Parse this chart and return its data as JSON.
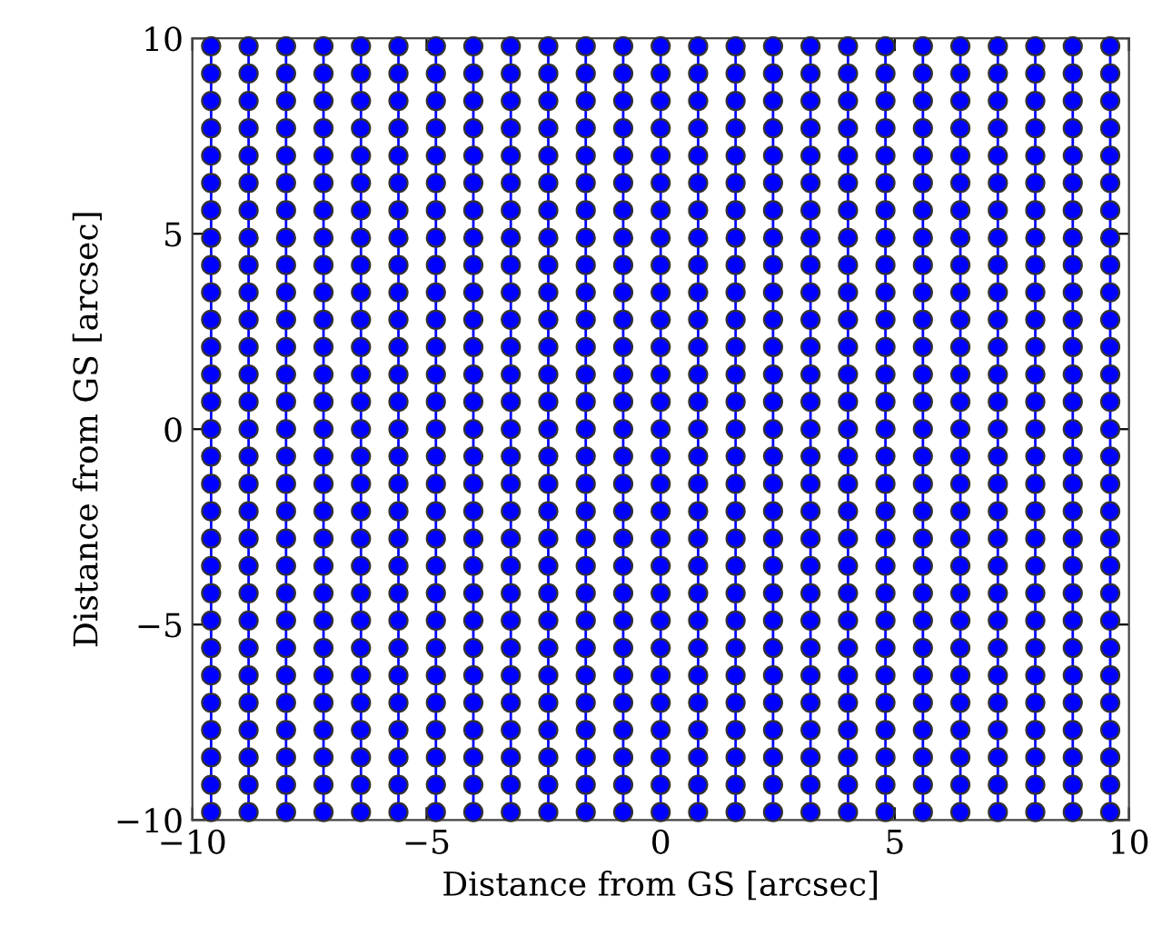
{
  "chart_data": {
    "type": "line",
    "xlabel": "Distance from GS [arcsec]",
    "ylabel": "Distance from GS [arcsec]",
    "xlim": [
      -10,
      10
    ],
    "ylim": [
      -10,
      10
    ],
    "xticks": [
      {
        "value": -10,
        "label": "−10"
      },
      {
        "value": -5,
        "label": "−5"
      },
      0,
      5,
      10
    ],
    "yticks": [
      {
        "value": -10,
        "label": "−10"
      },
      {
        "value": -5,
        "label": "−5"
      },
      0,
      5,
      10
    ],
    "marker": "circle",
    "line_style": "solid",
    "grid": false,
    "series": [
      {
        "color": "#0000ff",
        "x": [
          -9.6,
          -9.6,
          -9.6,
          -9.6,
          -9.6,
          -9.6,
          -9.6,
          -9.6,
          -9.6,
          -9.6,
          -9.6,
          -9.6,
          -9.6,
          -9.6,
          -9.6,
          -9.6,
          -9.6,
          -9.6,
          -9.6,
          -9.6,
          -9.6,
          -9.6,
          -9.6,
          -9.6,
          -9.6,
          -9.6,
          -9.6,
          -9.6,
          -9.6
        ],
        "values": [
          -9.8,
          -9.1,
          -8.4,
          -7.7,
          -7,
          -6.3,
          -5.6,
          -4.9,
          -4.2,
          -3.5,
          -2.8,
          -2.1,
          -1.4,
          -0.7,
          0,
          0.7,
          1.4,
          2.1,
          2.8,
          3.5,
          4.2,
          4.9,
          5.6,
          6.3,
          7,
          7.7,
          8.4,
          9.1,
          9.8
        ]
      },
      {
        "color": "#0000ff",
        "x": [
          -8.8,
          -8.8,
          -8.8,
          -8.8,
          -8.8,
          -8.8,
          -8.8,
          -8.8,
          -8.8,
          -8.8,
          -8.8,
          -8.8,
          -8.8,
          -8.8,
          -8.8,
          -8.8,
          -8.8,
          -8.8,
          -8.8,
          -8.8,
          -8.8,
          -8.8,
          -8.8,
          -8.8,
          -8.8,
          -8.8,
          -8.8,
          -8.8,
          -8.8
        ],
        "values": [
          -9.8,
          -9.1,
          -8.4,
          -7.7,
          -7,
          -6.3,
          -5.6,
          -4.9,
          -4.2,
          -3.5,
          -2.8,
          -2.1,
          -1.4,
          -0.7,
          0,
          0.7,
          1.4,
          2.1,
          2.8,
          3.5,
          4.2,
          4.9,
          5.6,
          6.3,
          7,
          7.7,
          8.4,
          9.1,
          9.8
        ]
      },
      {
        "color": "#0000ff",
        "x": [
          -8,
          -8,
          -8,
          -8,
          -8,
          -8,
          -8,
          -8,
          -8,
          -8,
          -8,
          -8,
          -8,
          -8,
          -8,
          -8,
          -8,
          -8,
          -8,
          -8,
          -8,
          -8,
          -8,
          -8,
          -8,
          -8,
          -8,
          -8,
          -8
        ],
        "values": [
          -9.8,
          -9.1,
          -8.4,
          -7.7,
          -7,
          -6.3,
          -5.6,
          -4.9,
          -4.2,
          -3.5,
          -2.8,
          -2.1,
          -1.4,
          -0.7,
          0,
          0.7,
          1.4,
          2.1,
          2.8,
          3.5,
          4.2,
          4.9,
          5.6,
          6.3,
          7,
          7.7,
          8.4,
          9.1,
          9.8
        ]
      },
      {
        "color": "#0000ff",
        "x": [
          -7.2,
          -7.2,
          -7.2,
          -7.2,
          -7.2,
          -7.2,
          -7.2,
          -7.2,
          -7.2,
          -7.2,
          -7.2,
          -7.2,
          -7.2,
          -7.2,
          -7.2,
          -7.2,
          -7.2,
          -7.2,
          -7.2,
          -7.2,
          -7.2,
          -7.2,
          -7.2,
          -7.2,
          -7.2,
          -7.2,
          -7.2,
          -7.2,
          -7.2
        ],
        "values": [
          -9.8,
          -9.1,
          -8.4,
          -7.7,
          -7,
          -6.3,
          -5.6,
          -4.9,
          -4.2,
          -3.5,
          -2.8,
          -2.1,
          -1.4,
          -0.7,
          0,
          0.7,
          1.4,
          2.1,
          2.8,
          3.5,
          4.2,
          4.9,
          5.6,
          6.3,
          7,
          7.7,
          8.4,
          9.1,
          9.8
        ]
      },
      {
        "color": "#0000ff",
        "x": [
          -6.4,
          -6.4,
          -6.4,
          -6.4,
          -6.4,
          -6.4,
          -6.4,
          -6.4,
          -6.4,
          -6.4,
          -6.4,
          -6.4,
          -6.4,
          -6.4,
          -6.4,
          -6.4,
          -6.4,
          -6.4,
          -6.4,
          -6.4,
          -6.4,
          -6.4,
          -6.4,
          -6.4,
          -6.4,
          -6.4,
          -6.4,
          -6.4,
          -6.4
        ],
        "values": [
          -9.8,
          -9.1,
          -8.4,
          -7.7,
          -7,
          -6.3,
          -5.6,
          -4.9,
          -4.2,
          -3.5,
          -2.8,
          -2.1,
          -1.4,
          -0.7,
          0,
          0.7,
          1.4,
          2.1,
          2.8,
          3.5,
          4.2,
          4.9,
          5.6,
          6.3,
          7,
          7.7,
          8.4,
          9.1,
          9.8
        ]
      },
      {
        "color": "#0000ff",
        "x": [
          -5.6,
          -5.6,
          -5.6,
          -5.6,
          -5.6,
          -5.6,
          -5.6,
          -5.6,
          -5.6,
          -5.6,
          -5.6,
          -5.6,
          -5.6,
          -5.6,
          -5.6,
          -5.6,
          -5.6,
          -5.6,
          -5.6,
          -5.6,
          -5.6,
          -5.6,
          -5.6,
          -5.6,
          -5.6,
          -5.6,
          -5.6,
          -5.6,
          -5.6
        ],
        "values": [
          -9.8,
          -9.1,
          -8.4,
          -7.7,
          -7,
          -6.3,
          -5.6,
          -4.9,
          -4.2,
          -3.5,
          -2.8,
          -2.1,
          -1.4,
          -0.7,
          0,
          0.7,
          1.4,
          2.1,
          2.8,
          3.5,
          4.2,
          4.9,
          5.6,
          6.3,
          7,
          7.7,
          8.4,
          9.1,
          9.8
        ]
      },
      {
        "color": "#0000ff",
        "x": [
          -4.8,
          -4.8,
          -4.8,
          -4.8,
          -4.8,
          -4.8,
          -4.8,
          -4.8,
          -4.8,
          -4.8,
          -4.8,
          -4.8,
          -4.8,
          -4.8,
          -4.8,
          -4.8,
          -4.8,
          -4.8,
          -4.8,
          -4.8,
          -4.8,
          -4.8,
          -4.8,
          -4.8,
          -4.8,
          -4.8,
          -4.8,
          -4.8,
          -4.8
        ],
        "values": [
          -9.8,
          -9.1,
          -8.4,
          -7.7,
          -7,
          -6.3,
          -5.6,
          -4.9,
          -4.2,
          -3.5,
          -2.8,
          -2.1,
          -1.4,
          -0.7,
          0,
          0.7,
          1.4,
          2.1,
          2.8,
          3.5,
          4.2,
          4.9,
          5.6,
          6.3,
          7,
          7.7,
          8.4,
          9.1,
          9.8
        ]
      },
      {
        "color": "#0000ff",
        "x": [
          -4,
          -4,
          -4,
          -4,
          -4,
          -4,
          -4,
          -4,
          -4,
          -4,
          -4,
          -4,
          -4,
          -4,
          -4,
          -4,
          -4,
          -4,
          -4,
          -4,
          -4,
          -4,
          -4,
          -4,
          -4,
          -4,
          -4,
          -4,
          -4
        ],
        "values": [
          -9.8,
          -9.1,
          -8.4,
          -7.7,
          -7,
          -6.3,
          -5.6,
          -4.9,
          -4.2,
          -3.5,
          -2.8,
          -2.1,
          -1.4,
          -0.7,
          0,
          0.7,
          1.4,
          2.1,
          2.8,
          3.5,
          4.2,
          4.9,
          5.6,
          6.3,
          7,
          7.7,
          8.4,
          9.1,
          9.8
        ]
      },
      {
        "color": "#0000ff",
        "x": [
          -3.2,
          -3.2,
          -3.2,
          -3.2,
          -3.2,
          -3.2,
          -3.2,
          -3.2,
          -3.2,
          -3.2,
          -3.2,
          -3.2,
          -3.2,
          -3.2,
          -3.2,
          -3.2,
          -3.2,
          -3.2,
          -3.2,
          -3.2,
          -3.2,
          -3.2,
          -3.2,
          -3.2,
          -3.2,
          -3.2,
          -3.2,
          -3.2,
          -3.2
        ],
        "values": [
          -9.8,
          -9.1,
          -8.4,
          -7.7,
          -7,
          -6.3,
          -5.6,
          -4.9,
          -4.2,
          -3.5,
          -2.8,
          -2.1,
          -1.4,
          -0.7,
          0,
          0.7,
          1.4,
          2.1,
          2.8,
          3.5,
          4.2,
          4.9,
          5.6,
          6.3,
          7,
          7.7,
          8.4,
          9.1,
          9.8
        ]
      },
      {
        "color": "#0000ff",
        "x": [
          -2.4,
          -2.4,
          -2.4,
          -2.4,
          -2.4,
          -2.4,
          -2.4,
          -2.4,
          -2.4,
          -2.4,
          -2.4,
          -2.4,
          -2.4,
          -2.4,
          -2.4,
          -2.4,
          -2.4,
          -2.4,
          -2.4,
          -2.4,
          -2.4,
          -2.4,
          -2.4,
          -2.4,
          -2.4,
          -2.4,
          -2.4,
          -2.4,
          -2.4
        ],
        "values": [
          -9.8,
          -9.1,
          -8.4,
          -7.7,
          -7,
          -6.3,
          -5.6,
          -4.9,
          -4.2,
          -3.5,
          -2.8,
          -2.1,
          -1.4,
          -0.7,
          0,
          0.7,
          1.4,
          2.1,
          2.8,
          3.5,
          4.2,
          4.9,
          5.6,
          6.3,
          7,
          7.7,
          8.4,
          9.1,
          9.8
        ]
      },
      {
        "color": "#0000ff",
        "x": [
          -1.6,
          -1.6,
          -1.6,
          -1.6,
          -1.6,
          -1.6,
          -1.6,
          -1.6,
          -1.6,
          -1.6,
          -1.6,
          -1.6,
          -1.6,
          -1.6,
          -1.6,
          -1.6,
          -1.6,
          -1.6,
          -1.6,
          -1.6,
          -1.6,
          -1.6,
          -1.6,
          -1.6,
          -1.6,
          -1.6,
          -1.6,
          -1.6,
          -1.6
        ],
        "values": [
          -9.8,
          -9.1,
          -8.4,
          -7.7,
          -7,
          -6.3,
          -5.6,
          -4.9,
          -4.2,
          -3.5,
          -2.8,
          -2.1,
          -1.4,
          -0.7,
          0,
          0.7,
          1.4,
          2.1,
          2.8,
          3.5,
          4.2,
          4.9,
          5.6,
          6.3,
          7,
          7.7,
          8.4,
          9.1,
          9.8
        ]
      },
      {
        "color": "#0000ff",
        "x": [
          -0.8,
          -0.8,
          -0.8,
          -0.8,
          -0.8,
          -0.8,
          -0.8,
          -0.8,
          -0.8,
          -0.8,
          -0.8,
          -0.8,
          -0.8,
          -0.8,
          -0.8,
          -0.8,
          -0.8,
          -0.8,
          -0.8,
          -0.8,
          -0.8,
          -0.8,
          -0.8,
          -0.8,
          -0.8,
          -0.8,
          -0.8,
          -0.8,
          -0.8
        ],
        "values": [
          -9.8,
          -9.1,
          -8.4,
          -7.7,
          -7,
          -6.3,
          -5.6,
          -4.9,
          -4.2,
          -3.5,
          -2.8,
          -2.1,
          -1.4,
          -0.7,
          0,
          0.7,
          1.4,
          2.1,
          2.8,
          3.5,
          4.2,
          4.9,
          5.6,
          6.3,
          7,
          7.7,
          8.4,
          9.1,
          9.8
        ]
      },
      {
        "color": "#0000ff",
        "x": [
          0,
          0,
          0,
          0,
          0,
          0,
          0,
          0,
          0,
          0,
          0,
          0,
          0,
          0,
          0,
          0,
          0,
          0,
          0,
          0,
          0,
          0,
          0,
          0,
          0,
          0,
          0,
          0,
          0
        ],
        "values": [
          -9.8,
          -9.1,
          -8.4,
          -7.7,
          -7,
          -6.3,
          -5.6,
          -4.9,
          -4.2,
          -3.5,
          -2.8,
          -2.1,
          -1.4,
          -0.7,
          0,
          0.7,
          1.4,
          2.1,
          2.8,
          3.5,
          4.2,
          4.9,
          5.6,
          6.3,
          7,
          7.7,
          8.4,
          9.1,
          9.8
        ]
      },
      {
        "color": "#0000ff",
        "x": [
          0.8,
          0.8,
          0.8,
          0.8,
          0.8,
          0.8,
          0.8,
          0.8,
          0.8,
          0.8,
          0.8,
          0.8,
          0.8,
          0.8,
          0.8,
          0.8,
          0.8,
          0.8,
          0.8,
          0.8,
          0.8,
          0.8,
          0.8,
          0.8,
          0.8,
          0.8,
          0.8,
          0.8,
          0.8
        ],
        "values": [
          -9.8,
          -9.1,
          -8.4,
          -7.7,
          -7,
          -6.3,
          -5.6,
          -4.9,
          -4.2,
          -3.5,
          -2.8,
          -2.1,
          -1.4,
          -0.7,
          0,
          0.7,
          1.4,
          2.1,
          2.8,
          3.5,
          4.2,
          4.9,
          5.6,
          6.3,
          7,
          7.7,
          8.4,
          9.1,
          9.8
        ]
      },
      {
        "color": "#0000ff",
        "x": [
          1.6,
          1.6,
          1.6,
          1.6,
          1.6,
          1.6,
          1.6,
          1.6,
          1.6,
          1.6,
          1.6,
          1.6,
          1.6,
          1.6,
          1.6,
          1.6,
          1.6,
          1.6,
          1.6,
          1.6,
          1.6,
          1.6,
          1.6,
          1.6,
          1.6,
          1.6,
          1.6,
          1.6,
          1.6
        ],
        "values": [
          -9.8,
          -9.1,
          -8.4,
          -7.7,
          -7,
          -6.3,
          -5.6,
          -4.9,
          -4.2,
          -3.5,
          -2.8,
          -2.1,
          -1.4,
          -0.7,
          0,
          0.7,
          1.4,
          2.1,
          2.8,
          3.5,
          4.2,
          4.9,
          5.6,
          6.3,
          7,
          7.7,
          8.4,
          9.1,
          9.8
        ]
      },
      {
        "color": "#0000ff",
        "x": [
          2.4,
          2.4,
          2.4,
          2.4,
          2.4,
          2.4,
          2.4,
          2.4,
          2.4,
          2.4,
          2.4,
          2.4,
          2.4,
          2.4,
          2.4,
          2.4,
          2.4,
          2.4,
          2.4,
          2.4,
          2.4,
          2.4,
          2.4,
          2.4,
          2.4,
          2.4,
          2.4,
          2.4,
          2.4
        ],
        "values": [
          -9.8,
          -9.1,
          -8.4,
          -7.7,
          -7,
          -6.3,
          -5.6,
          -4.9,
          -4.2,
          -3.5,
          -2.8,
          -2.1,
          -1.4,
          -0.7,
          0,
          0.7,
          1.4,
          2.1,
          2.8,
          3.5,
          4.2,
          4.9,
          5.6,
          6.3,
          7,
          7.7,
          8.4,
          9.1,
          9.8
        ]
      },
      {
        "color": "#0000ff",
        "x": [
          3.2,
          3.2,
          3.2,
          3.2,
          3.2,
          3.2,
          3.2,
          3.2,
          3.2,
          3.2,
          3.2,
          3.2,
          3.2,
          3.2,
          3.2,
          3.2,
          3.2,
          3.2,
          3.2,
          3.2,
          3.2,
          3.2,
          3.2,
          3.2,
          3.2,
          3.2,
          3.2,
          3.2,
          3.2
        ],
        "values": [
          -9.8,
          -9.1,
          -8.4,
          -7.7,
          -7,
          -6.3,
          -5.6,
          -4.9,
          -4.2,
          -3.5,
          -2.8,
          -2.1,
          -1.4,
          -0.7,
          0,
          0.7,
          1.4,
          2.1,
          2.8,
          3.5,
          4.2,
          4.9,
          5.6,
          6.3,
          7,
          7.7,
          8.4,
          9.1,
          9.8
        ]
      },
      {
        "color": "#0000ff",
        "x": [
          4,
          4,
          4,
          4,
          4,
          4,
          4,
          4,
          4,
          4,
          4,
          4,
          4,
          4,
          4,
          4,
          4,
          4,
          4,
          4,
          4,
          4,
          4,
          4,
          4,
          4,
          4,
          4,
          4
        ],
        "values": [
          -9.8,
          -9.1,
          -8.4,
          -7.7,
          -7,
          -6.3,
          -5.6,
          -4.9,
          -4.2,
          -3.5,
          -2.8,
          -2.1,
          -1.4,
          -0.7,
          0,
          0.7,
          1.4,
          2.1,
          2.8,
          3.5,
          4.2,
          4.9,
          5.6,
          6.3,
          7,
          7.7,
          8.4,
          9.1,
          9.8
        ]
      },
      {
        "color": "#0000ff",
        "x": [
          4.8,
          4.8,
          4.8,
          4.8,
          4.8,
          4.8,
          4.8,
          4.8,
          4.8,
          4.8,
          4.8,
          4.8,
          4.8,
          4.8,
          4.8,
          4.8,
          4.8,
          4.8,
          4.8,
          4.8,
          4.8,
          4.8,
          4.8,
          4.8,
          4.8,
          4.8,
          4.8,
          4.8,
          4.8
        ],
        "values": [
          -9.8,
          -9.1,
          -8.4,
          -7.7,
          -7,
          -6.3,
          -5.6,
          -4.9,
          -4.2,
          -3.5,
          -2.8,
          -2.1,
          -1.4,
          -0.7,
          0,
          0.7,
          1.4,
          2.1,
          2.8,
          3.5,
          4.2,
          4.9,
          5.6,
          6.3,
          7,
          7.7,
          8.4,
          9.1,
          9.8
        ]
      },
      {
        "color": "#0000ff",
        "x": [
          5.6,
          5.6,
          5.6,
          5.6,
          5.6,
          5.6,
          5.6,
          5.6,
          5.6,
          5.6,
          5.6,
          5.6,
          5.6,
          5.6,
          5.6,
          5.6,
          5.6,
          5.6,
          5.6,
          5.6,
          5.6,
          5.6,
          5.6,
          5.6,
          5.6,
          5.6,
          5.6,
          5.6,
          5.6
        ],
        "values": [
          -9.8,
          -9.1,
          -8.4,
          -7.7,
          -7,
          -6.3,
          -5.6,
          -4.9,
          -4.2,
          -3.5,
          -2.8,
          -2.1,
          -1.4,
          -0.7,
          0,
          0.7,
          1.4,
          2.1,
          2.8,
          3.5,
          4.2,
          4.9,
          5.6,
          6.3,
          7,
          7.7,
          8.4,
          9.1,
          9.8
        ]
      },
      {
        "color": "#0000ff",
        "x": [
          6.4,
          6.4,
          6.4,
          6.4,
          6.4,
          6.4,
          6.4,
          6.4,
          6.4,
          6.4,
          6.4,
          6.4,
          6.4,
          6.4,
          6.4,
          6.4,
          6.4,
          6.4,
          6.4,
          6.4,
          6.4,
          6.4,
          6.4,
          6.4,
          6.4,
          6.4,
          6.4,
          6.4,
          6.4
        ],
        "values": [
          -9.8,
          -9.1,
          -8.4,
          -7.7,
          -7,
          -6.3,
          -5.6,
          -4.9,
          -4.2,
          -3.5,
          -2.8,
          -2.1,
          -1.4,
          -0.7,
          0,
          0.7,
          1.4,
          2.1,
          2.8,
          3.5,
          4.2,
          4.9,
          5.6,
          6.3,
          7,
          7.7,
          8.4,
          9.1,
          9.8
        ]
      },
      {
        "color": "#0000ff",
        "x": [
          7.2,
          7.2,
          7.2,
          7.2,
          7.2,
          7.2,
          7.2,
          7.2,
          7.2,
          7.2,
          7.2,
          7.2,
          7.2,
          7.2,
          7.2,
          7.2,
          7.2,
          7.2,
          7.2,
          7.2,
          7.2,
          7.2,
          7.2,
          7.2,
          7.2,
          7.2,
          7.2,
          7.2,
          7.2
        ],
        "values": [
          -9.8,
          -9.1,
          -8.4,
          -7.7,
          -7,
          -6.3,
          -5.6,
          -4.9,
          -4.2,
          -3.5,
          -2.8,
          -2.1,
          -1.4,
          -0.7,
          0,
          0.7,
          1.4,
          2.1,
          2.8,
          3.5,
          4.2,
          4.9,
          5.6,
          6.3,
          7,
          7.7,
          8.4,
          9.1,
          9.8
        ]
      },
      {
        "color": "#0000ff",
        "x": [
          8,
          8,
          8,
          8,
          8,
          8,
          8,
          8,
          8,
          8,
          8,
          8,
          8,
          8,
          8,
          8,
          8,
          8,
          8,
          8,
          8,
          8,
          8,
          8,
          8,
          8,
          8,
          8,
          8
        ],
        "values": [
          -9.8,
          -9.1,
          -8.4,
          -7.7,
          -7,
          -6.3,
          -5.6,
          -4.9,
          -4.2,
          -3.5,
          -2.8,
          -2.1,
          -1.4,
          -0.7,
          0,
          0.7,
          1.4,
          2.1,
          2.8,
          3.5,
          4.2,
          4.9,
          5.6,
          6.3,
          7,
          7.7,
          8.4,
          9.1,
          9.8
        ]
      },
      {
        "color": "#0000ff",
        "x": [
          8.8,
          8.8,
          8.8,
          8.8,
          8.8,
          8.8,
          8.8,
          8.8,
          8.8,
          8.8,
          8.8,
          8.8,
          8.8,
          8.8,
          8.8,
          8.8,
          8.8,
          8.8,
          8.8,
          8.8,
          8.8,
          8.8,
          8.8,
          8.8,
          8.8,
          8.8,
          8.8,
          8.8,
          8.8
        ],
        "values": [
          -9.8,
          -9.1,
          -8.4,
          -7.7,
          -7,
          -6.3,
          -5.6,
          -4.9,
          -4.2,
          -3.5,
          -2.8,
          -2.1,
          -1.4,
          -0.7,
          0,
          0.7,
          1.4,
          2.1,
          2.8,
          3.5,
          4.2,
          4.9,
          5.6,
          6.3,
          7,
          7.7,
          8.4,
          9.1,
          9.8
        ]
      },
      {
        "color": "#0000ff",
        "x": [
          9.6,
          9.6,
          9.6,
          9.6,
          9.6,
          9.6,
          9.6,
          9.6,
          9.6,
          9.6,
          9.6,
          9.6,
          9.6,
          9.6,
          9.6,
          9.6,
          9.6,
          9.6,
          9.6,
          9.6,
          9.6,
          9.6,
          9.6,
          9.6,
          9.6,
          9.6,
          9.6,
          9.6,
          9.6
        ],
        "values": [
          -9.8,
          -9.1,
          -8.4,
          -7.7,
          -7,
          -6.3,
          -5.6,
          -4.9,
          -4.2,
          -3.5,
          -2.8,
          -2.1,
          -1.4,
          -0.7,
          0,
          0.7,
          1.4,
          2.1,
          2.8,
          3.5,
          4.2,
          4.9,
          5.6,
          6.3,
          7,
          7.7,
          8.4,
          9.1,
          9.8
        ]
      }
    ]
  }
}
